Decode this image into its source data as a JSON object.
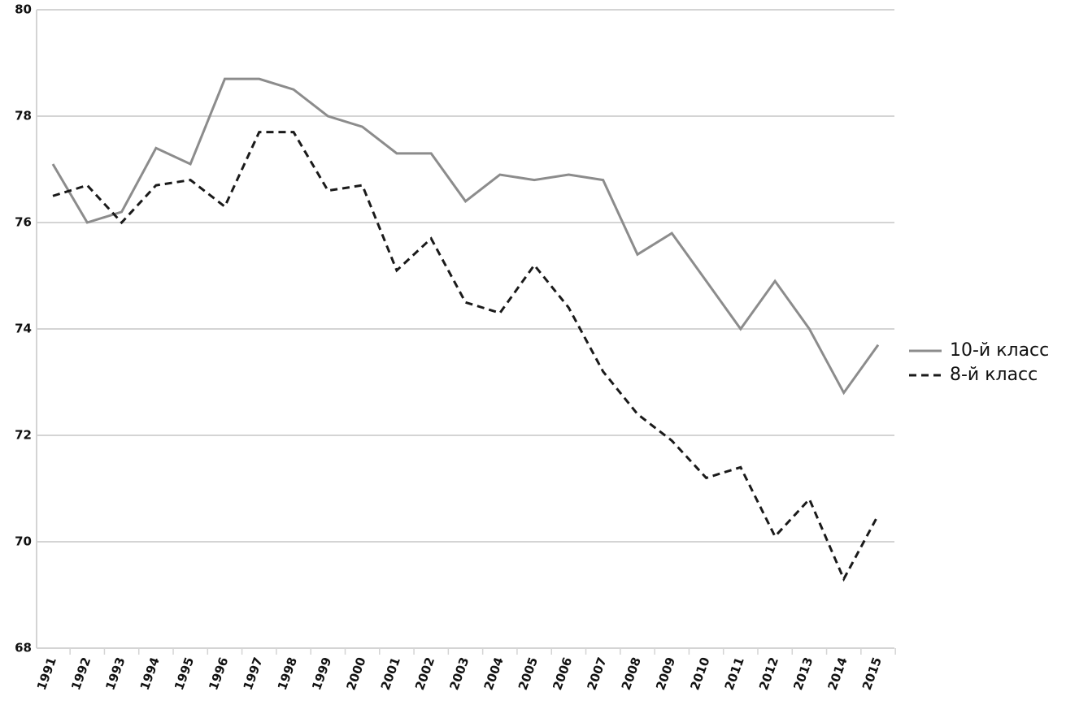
{
  "chart_data": {
    "type": "line",
    "categories": [
      "1991",
      "1992",
      "1993",
      "1994",
      "1995",
      "1996",
      "1997",
      "1998",
      "1999",
      "2000",
      "2001",
      "2002",
      "2003",
      "2004",
      "2005",
      "2006",
      "2007",
      "2008",
      "2009",
      "2010",
      "2011",
      "2012",
      "2013",
      "2014",
      "2015"
    ],
    "series": [
      {
        "name": "10-й класс",
        "color": "#8c8c8c",
        "dash": "solid",
        "values": [
          77.1,
          76.0,
          76.2,
          77.4,
          77.1,
          78.7,
          78.7,
          78.5,
          78.0,
          77.8,
          77.3,
          77.3,
          76.4,
          76.9,
          76.8,
          76.9,
          76.8,
          75.4,
          75.8,
          74.9,
          74.0,
          74.9,
          74.0,
          72.8,
          73.7
        ]
      },
      {
        "name": "8-й класс",
        "color": "#1a1a1a",
        "dash": "dashed",
        "values": [
          76.5,
          76.7,
          76.0,
          76.7,
          76.8,
          76.3,
          77.7,
          77.7,
          76.6,
          76.7,
          75.1,
          75.7,
          74.5,
          74.3,
          75.2,
          74.4,
          73.2,
          72.4,
          71.9,
          71.2,
          71.4,
          70.1,
          70.8,
          69.3,
          70.5
        ]
      }
    ],
    "ylim": [
      68,
      80
    ],
    "yticks": [
      68,
      70,
      72,
      74,
      76,
      78,
      80
    ],
    "grid": true,
    "legend": "right"
  }
}
